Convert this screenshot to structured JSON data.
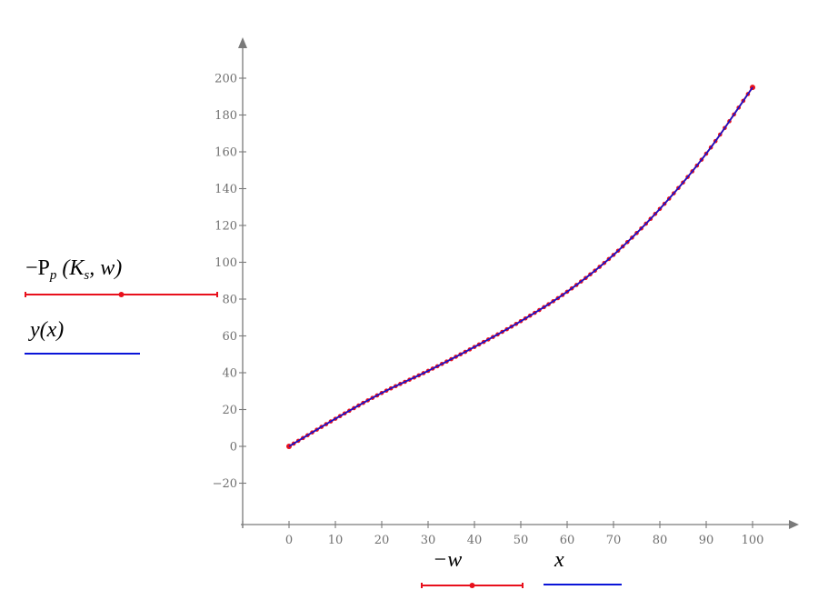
{
  "chart_data": {
    "type": "line",
    "title": "",
    "xlabel": "−w / x",
    "ylabel": "−P_p(K_s, w) / y(x)",
    "xlim": [
      -10,
      108
    ],
    "ylim": [
      -42,
      215
    ],
    "grid": false,
    "x_ticks": [
      0,
      10,
      20,
      30,
      40,
      50,
      60,
      70,
      80,
      90,
      100
    ],
    "y_ticks": [
      -20,
      0,
      20,
      40,
      60,
      80,
      100,
      120,
      140,
      160,
      180,
      200
    ],
    "x_tick_labels": [
      "0",
      "10",
      "20",
      "30",
      "40",
      "50",
      "60",
      "70",
      "80",
      "90",
      "100"
    ],
    "y_tick_labels": [
      "−20",
      "0",
      "20",
      "40",
      "60",
      "80",
      "100",
      "120",
      "140",
      "160",
      "180",
      "200"
    ],
    "x": [
      0,
      10,
      20,
      30,
      40,
      50,
      60,
      70,
      80,
      90,
      100
    ],
    "series": [
      {
        "name": "−P_p(K_s, w) vs −w",
        "style": "line+markers",
        "color": "#e8101c",
        "marker_step": 1,
        "values": [
          0,
          15,
          29,
          41,
          54,
          68,
          84,
          104,
          129,
          159,
          195
        ]
      },
      {
        "name": "y(x) vs x",
        "style": "line",
        "color": "#0a14d8",
        "values": [
          0,
          15,
          29,
          41,
          54,
          68,
          84,
          104,
          129,
          159,
          195
        ]
      }
    ],
    "legend": {
      "y_axis": [
        {
          "label_prefix": "−P",
          "label_sub": "p",
          "label_args_open": "(K",
          "label_args_sub": "s",
          "label_args_rest": ", w)",
          "color": "#e8101c",
          "style": "line+marker"
        },
        {
          "label": "y(x)",
          "color": "#0a14d8",
          "style": "line"
        }
      ],
      "x_axis": [
        {
          "label": "−w",
          "color": "#e8101c",
          "style": "line+marker"
        },
        {
          "label": "x",
          "color": "#0a14d8",
          "style": "line"
        }
      ]
    }
  },
  "colors": {
    "axis": "#7a7a7a",
    "tick_label": "#6f6f6f",
    "red": "#e8101c",
    "blue": "#0a14d8"
  }
}
